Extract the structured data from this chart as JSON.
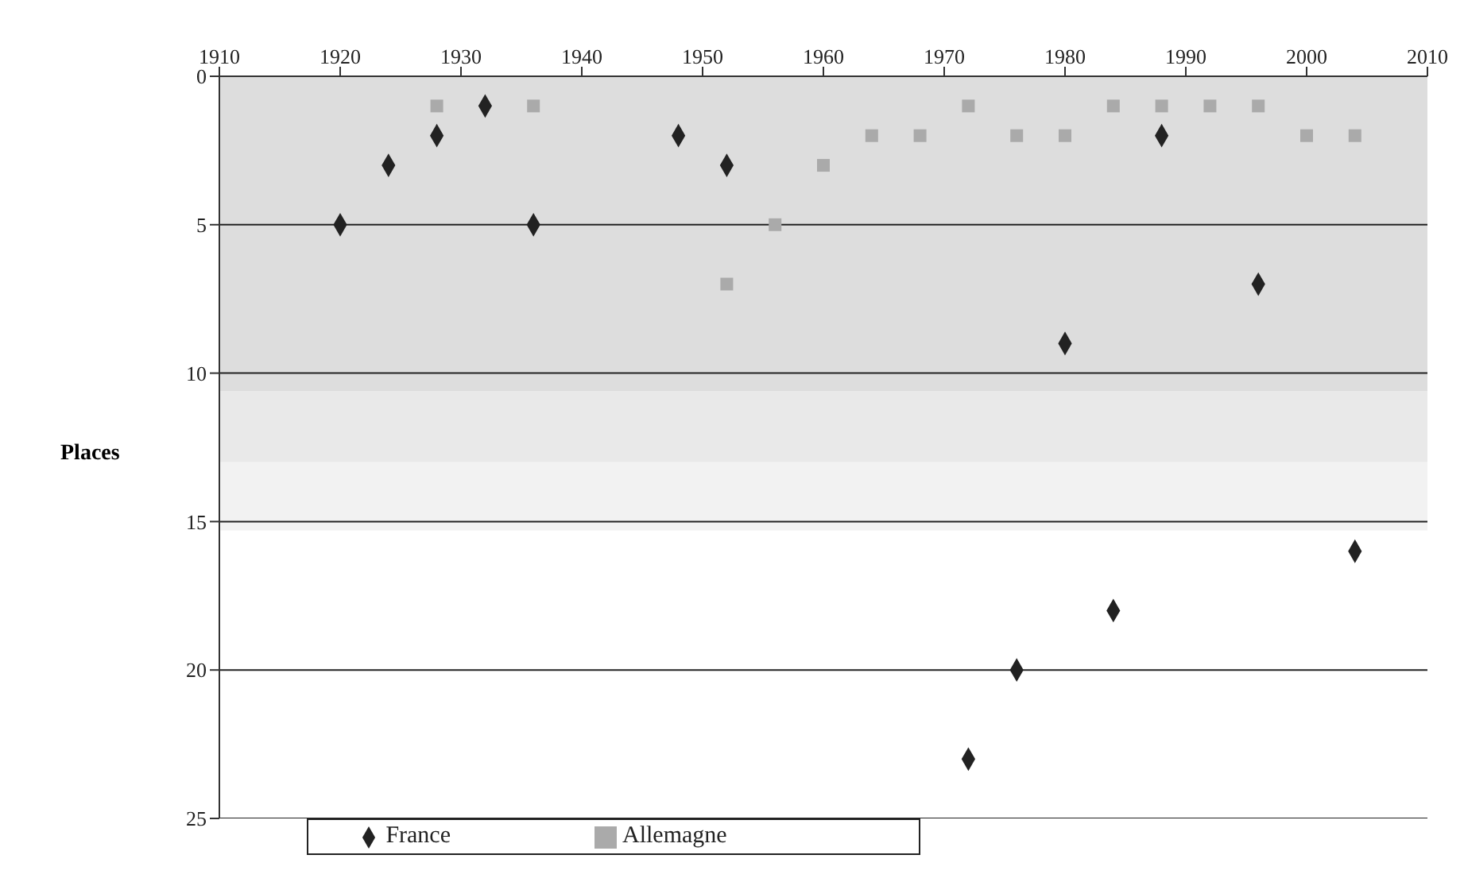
{
  "chart_data": {
    "type": "scatter",
    "ylabel": "Places",
    "xlim": [
      1910,
      2010
    ],
    "xticks": [
      1910,
      1920,
      1930,
      1940,
      1950,
      1960,
      1970,
      1980,
      1990,
      2000,
      2010
    ],
    "ylim": [
      25,
      0
    ],
    "yticks": [
      0,
      5,
      10,
      15,
      20,
      25
    ],
    "grid": "y",
    "legend": "bottom",
    "bands": [
      {
        "axis": "y",
        "from": 0,
        "to": 10.6,
        "color": "#dddddd"
      },
      {
        "axis": "y",
        "from": 10.6,
        "to": 13,
        "color": "#e9e9e9"
      },
      {
        "axis": "y",
        "from": 13,
        "to": 15.3,
        "color": "#f2f2f2"
      }
    ],
    "series": [
      {
        "name": "France",
        "color": "#222222",
        "marker": "diamond",
        "x": [
          1920,
          1924,
          1928,
          1932,
          1936,
          1948,
          1952,
          1972,
          1976,
          1980,
          1984,
          1988,
          1996,
          2004
        ],
        "values": [
          5,
          3,
          2,
          1,
          5,
          2,
          3,
          23,
          20,
          9,
          18,
          2,
          7,
          16
        ]
      },
      {
        "name": "Allemagne",
        "color": "#aaaaaa",
        "marker": "square",
        "x": [
          1928,
          1936,
          1952,
          1956,
          1960,
          1964,
          1968,
          1972,
          1976,
          1980,
          1984,
          1988,
          1992,
          1996,
          2000,
          2004
        ],
        "values": [
          1,
          1,
          7,
          5,
          3,
          2,
          2,
          1,
          2,
          2,
          1,
          1,
          1,
          1,
          2,
          2
        ]
      }
    ]
  }
}
